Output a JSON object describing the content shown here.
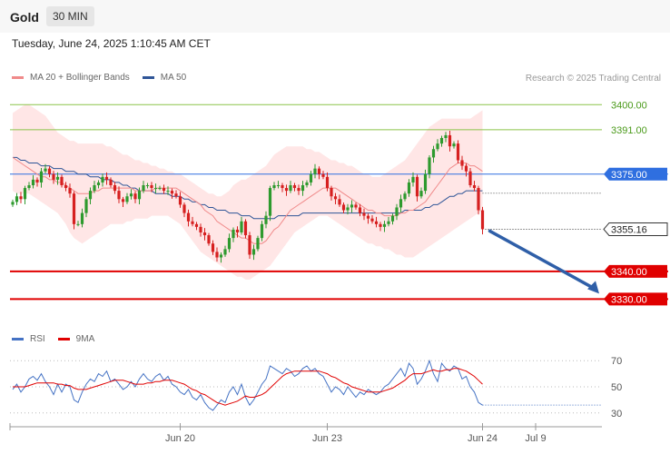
{
  "header": {
    "title": "Gold",
    "timeframe": "30 MIN"
  },
  "datetime": "Tuesday, June 24, 2025 1:10:45 AM CET",
  "legend_main": [
    {
      "label": "MA 20 + Bollinger Bands",
      "color": "#f08a8a"
    },
    {
      "label": "MA 50",
      "color": "#2f5597"
    }
  ],
  "credit": "Research © 2025 Trading Central",
  "legend_rsi": [
    {
      "label": "RSI",
      "color": "#4472c4"
    },
    {
      "label": "9MA",
      "color": "#e00000"
    }
  ],
  "colors": {
    "up": "#2e9a2e",
    "down": "#d62020",
    "resistance": "#8bc34a",
    "pivot": "#2f6fe0",
    "support": "#e00000",
    "price_tag": "#333333",
    "bb_fill": "#ffe3e3",
    "arrow": "#2f5fa8"
  },
  "chart_data": [
    {
      "type": "candlestick",
      "title": "Gold",
      "ylim": [
        3320,
        3405
      ],
      "levels": [
        {
          "value": 3400.0,
          "label": "3400.00",
          "kind": "resistance"
        },
        {
          "value": 3391.0,
          "label": "3391.00",
          "kind": "resistance"
        },
        {
          "value": 3375.0,
          "label": "3375.00",
          "kind": "pivot"
        },
        {
          "value": 3340.0,
          "label": "3340.00",
          "kind": "support"
        },
        {
          "value": 3330.0,
          "label": "3330.00",
          "kind": "support"
        }
      ],
      "last_price": {
        "value": 3355.16,
        "label": "3355.16"
      },
      "forecast_target": 3330.0,
      "x_ticks": [
        {
          "index": 41,
          "label": "Jun 20"
        },
        {
          "index": 77,
          "label": "Jun 23"
        },
        {
          "index": 115,
          "label": "Jun 24"
        },
        {
          "index": 128,
          "label": "Jul 9"
        }
      ],
      "closes": [
        3365,
        3367,
        3366,
        3370,
        3371,
        3373,
        3372,
        3376,
        3377,
        3375,
        3373,
        3374,
        3371,
        3370,
        3368,
        3357,
        3357,
        3361,
        3366,
        3369,
        3371,
        3372,
        3374,
        3373,
        3371,
        3369,
        3366,
        3365,
        3367,
        3368,
        3366,
        3369,
        3371,
        3371,
        3370,
        3370,
        3370,
        3369,
        3369,
        3368,
        3367,
        3364,
        3361,
        3358,
        3357,
        3356,
        3354,
        3353,
        3350,
        3347,
        3345,
        3346,
        3348,
        3352,
        3355,
        3354,
        3358,
        3353,
        3346,
        3348,
        3352,
        3357,
        3360,
        3370,
        3371,
        3371,
        3370,
        3369,
        3371,
        3370,
        3369,
        3371,
        3372,
        3375,
        3377,
        3375,
        3374,
        3370,
        3367,
        3366,
        3364,
        3362,
        3363,
        3364,
        3363,
        3361,
        3360,
        3359,
        3358,
        3357,
        3356,
        3357,
        3358,
        3360,
        3363,
        3366,
        3368,
        3372,
        3374,
        3367,
        3369,
        3375,
        3381,
        3384,
        3386,
        3388,
        3389,
        3385,
        3386,
        3380,
        3378,
        3376,
        3371,
        3370,
        3362,
        3355.16
      ],
      "ma20": [
        3381,
        3380,
        3379,
        3378,
        3377,
        3376,
        3375,
        3374,
        3374,
        3373,
        3373,
        3372,
        3372,
        3371,
        3370,
        3369,
        3368,
        3368,
        3368,
        3368,
        3369,
        3369,
        3370,
        3370,
        3370,
        3370,
        3370,
        3370,
        3370,
        3370,
        3369,
        3369,
        3369,
        3369,
        3369,
        3370,
        3370,
        3370,
        3370,
        3370,
        3370,
        3369,
        3368,
        3367,
        3366,
        3365,
        3364,
        3362,
        3361,
        3360,
        3358,
        3357,
        3356,
        3355,
        3354,
        3353,
        3352,
        3352,
        3351,
        3350,
        3350,
        3350,
        3351,
        3353,
        3355,
        3356,
        3358,
        3360,
        3362,
        3363,
        3364,
        3365,
        3366,
        3367,
        3368,
        3369,
        3370,
        3370,
        3370,
        3370,
        3369,
        3368,
        3367,
        3366,
        3365,
        3364,
        3363,
        3362,
        3362,
        3361,
        3361,
        3360,
        3360,
        3360,
        3360,
        3361,
        3361,
        3362,
        3362,
        3363,
        3364,
        3365,
        3367,
        3369,
        3371,
        3373,
        3375,
        3377,
        3378,
        3379,
        3379,
        3379,
        3378,
        3378,
        3377,
        3376
      ],
      "ma50": [
        3381,
        3381,
        3380,
        3380,
        3379,
        3379,
        3379,
        3378,
        3378,
        3378,
        3377,
        3377,
        3377,
        3376,
        3376,
        3376,
        3375,
        3375,
        3375,
        3374,
        3374,
        3374,
        3373,
        3373,
        3373,
        3372,
        3372,
        3371,
        3371,
        3370,
        3370,
        3369,
        3369,
        3369,
        3369,
        3368,
        3368,
        3368,
        3368,
        3367,
        3367,
        3367,
        3366,
        3366,
        3365,
        3365,
        3364,
        3364,
        3363,
        3363,
        3362,
        3362,
        3362,
        3361,
        3361,
        3361,
        3360,
        3360,
        3360,
        3359,
        3359,
        3359,
        3359,
        3359,
        3359,
        3360,
        3360,
        3360,
        3360,
        3360,
        3360,
        3361,
        3361,
        3361,
        3361,
        3361,
        3361,
        3361,
        3361,
        3361,
        3361,
        3361,
        3361,
        3361,
        3361,
        3361,
        3361,
        3361,
        3361,
        3361,
        3361,
        3361,
        3361,
        3361,
        3361,
        3361,
        3362,
        3362,
        3362,
        3362,
        3362,
        3363,
        3363,
        3364,
        3364,
        3365,
        3366,
        3367,
        3367,
        3368,
        3368,
        3369,
        3369,
        3369,
        3369,
        3369
      ],
      "bb_upper": [
        3397,
        3398,
        3399,
        3400,
        3400,
        3399,
        3398,
        3397,
        3396,
        3394,
        3392,
        3390,
        3389,
        3388,
        3387,
        3387,
        3386,
        3386,
        3386,
        3386,
        3386,
        3386,
        3386,
        3385,
        3385,
        3384,
        3383,
        3382,
        3382,
        3381,
        3380,
        3380,
        3379,
        3379,
        3378,
        3378,
        3377,
        3377,
        3376,
        3376,
        3375,
        3375,
        3374,
        3373,
        3372,
        3371,
        3370,
        3369,
        3368,
        3368,
        3367,
        3367,
        3368,
        3369,
        3371,
        3372,
        3373,
        3373,
        3374,
        3375,
        3376,
        3377,
        3378,
        3380,
        3382,
        3383,
        3384,
        3385,
        3385,
        3385,
        3385,
        3385,
        3384,
        3384,
        3383,
        3383,
        3382,
        3381,
        3380,
        3380,
        3379,
        3379,
        3378,
        3378,
        3377,
        3376,
        3375,
        3375,
        3374,
        3374,
        3374,
        3375,
        3376,
        3377,
        3378,
        3379,
        3380,
        3382,
        3384,
        3386,
        3388,
        3390,
        3392,
        3393,
        3394,
        3395,
        3395,
        3395,
        3395,
        3395,
        3395,
        3395,
        3395,
        3396,
        3397,
        3398
      ],
      "bb_lower": [
        3369,
        3368,
        3368,
        3368,
        3368,
        3367,
        3366,
        3365,
        3364,
        3363,
        3362,
        3361,
        3359,
        3357,
        3354,
        3352,
        3351,
        3350,
        3351,
        3352,
        3353,
        3354,
        3355,
        3356,
        3357,
        3357,
        3357,
        3357,
        3358,
        3358,
        3359,
        3359,
        3359,
        3359,
        3360,
        3360,
        3360,
        3360,
        3360,
        3359,
        3358,
        3357,
        3355,
        3353,
        3351,
        3349,
        3347,
        3346,
        3345,
        3344,
        3343,
        3342,
        3341,
        3340,
        3339,
        3338,
        3338,
        3337,
        3337,
        3338,
        3339,
        3340,
        3341,
        3342,
        3344,
        3346,
        3348,
        3350,
        3352,
        3354,
        3355,
        3356,
        3357,
        3358,
        3359,
        3360,
        3360,
        3360,
        3359,
        3358,
        3357,
        3356,
        3355,
        3354,
        3353,
        3352,
        3351,
        3350,
        3350,
        3349,
        3349,
        3348,
        3348,
        3347,
        3346,
        3346,
        3345,
        3345,
        3345,
        3346,
        3347,
        3348,
        3349,
        3350,
        3351,
        3352,
        3353,
        3354,
        3355,
        3356,
        3357,
        3358,
        3359,
        3360,
        3361,
        3362
      ]
    },
    {
      "type": "line",
      "ylim": [
        25,
        75
      ],
      "y_ticks": [
        30,
        50,
        70
      ],
      "rsi": [
        48,
        52,
        46,
        50,
        56,
        58,
        55,
        60,
        54,
        50,
        44,
        52,
        46,
        52,
        50,
        40,
        38,
        46,
        52,
        56,
        54,
        60,
        58,
        62,
        54,
        56,
        52,
        48,
        50,
        54,
        50,
        56,
        60,
        56,
        54,
        58,
        60,
        55,
        58,
        52,
        50,
        46,
        44,
        48,
        42,
        40,
        44,
        38,
        34,
        32,
        36,
        40,
        38,
        46,
        50,
        44,
        52,
        42,
        36,
        40,
        46,
        52,
        56,
        66,
        64,
        62,
        60,
        64,
        62,
        58,
        60,
        64,
        66,
        62,
        64,
        60,
        58,
        52,
        46,
        50,
        48,
        44,
        50,
        46,
        42,
        46,
        44,
        48,
        46,
        44,
        46,
        50,
        52,
        56,
        60,
        64,
        58,
        68,
        64,
        52,
        56,
        62,
        70,
        60,
        54,
        68,
        64,
        62,
        66,
        64,
        56,
        58,
        50,
        46,
        38,
        36
      ],
      "ma9": [
        50,
        50,
        50,
        50,
        51,
        52,
        53,
        53,
        53,
        53,
        53,
        52,
        52,
        51,
        51,
        49,
        48,
        48,
        48,
        49,
        50,
        51,
        52,
        53,
        54,
        55,
        55,
        55,
        54,
        53,
        52,
        52,
        52,
        53,
        53,
        54,
        54,
        55,
        55,
        55,
        54,
        53,
        52,
        50,
        48,
        47,
        45,
        44,
        42,
        40,
        38,
        37,
        36,
        37,
        38,
        39,
        41,
        43,
        42,
        42,
        43,
        44,
        46,
        49,
        52,
        55,
        58,
        60,
        61,
        62,
        62,
        62,
        62,
        62,
        62,
        62,
        61,
        60,
        58,
        57,
        55,
        53,
        52,
        50,
        49,
        48,
        47,
        46,
        46,
        46,
        46,
        47,
        48,
        49,
        51,
        53,
        55,
        58,
        60,
        60,
        60,
        61,
        62,
        63,
        62,
        62,
        63,
        63,
        64,
        64,
        63,
        62,
        60,
        58,
        55,
        52
      ]
    }
  ]
}
